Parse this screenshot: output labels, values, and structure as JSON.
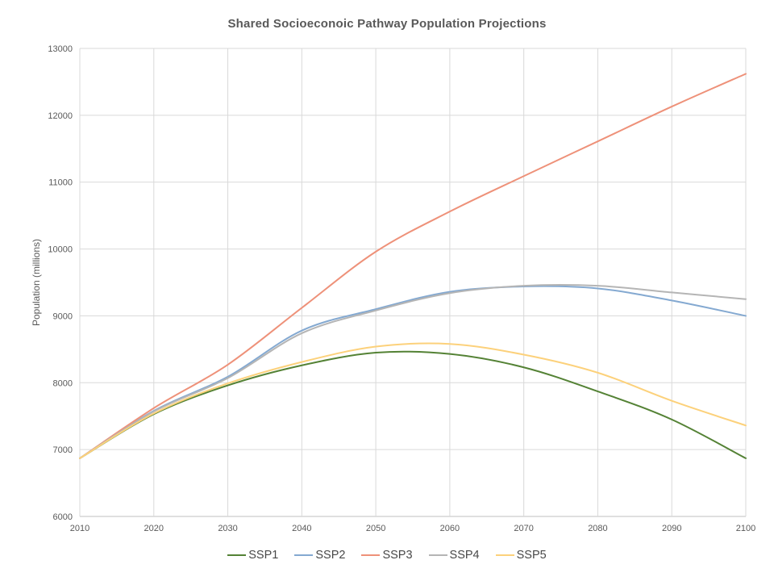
{
  "title": "Shared Socioeconoic Pathway Population Projections",
  "chart_data": {
    "type": "line",
    "x": [
      2010,
      2020,
      2030,
      2040,
      2050,
      2060,
      2070,
      2080,
      2090,
      2100
    ],
    "series": [
      {
        "name": "SSP1",
        "color": "#548235",
        "values": [
          6870,
          7530,
          7960,
          8260,
          8450,
          8430,
          8230,
          7870,
          7450,
          6870
        ]
      },
      {
        "name": "SSP2",
        "color": "#84a9d1",
        "values": [
          6870,
          7580,
          8090,
          8780,
          9100,
          9360,
          9440,
          9410,
          9230,
          9000
        ]
      },
      {
        "name": "SSP3",
        "color": "#ee9179",
        "values": [
          6870,
          7620,
          8270,
          9120,
          9960,
          10560,
          11090,
          11610,
          12130,
          12620
        ]
      },
      {
        "name": "SSP4",
        "color": "#b5b5b5",
        "values": [
          6870,
          7570,
          8070,
          8740,
          9080,
          9340,
          9450,
          9450,
          9350,
          9250
        ]
      },
      {
        "name": "SSP5",
        "color": "#fcd17b",
        "values": [
          6870,
          7540,
          7990,
          8310,
          8540,
          8580,
          8420,
          8150,
          7730,
          7360
        ]
      }
    ],
    "title": "Shared Socioeconoic Pathway Population Projections",
    "xlabel": "",
    "ylabel": "Population (millions)",
    "ylim": [
      6000,
      13000
    ],
    "ytick_step": 1000,
    "yticks": [
      "6000",
      "7000",
      "8000",
      "9000",
      "10000",
      "11000",
      "12000",
      "13000"
    ],
    "xticks": [
      "2010",
      "2020",
      "2030",
      "2040",
      "2050",
      "2060",
      "2070",
      "2080",
      "2090",
      "2100"
    ],
    "grid": true,
    "legend_position": "bottom"
  },
  "colors": {
    "background": "#ffffff",
    "grid": "#d9d9d9",
    "axis": "#bfbfbf",
    "tick_text": "#595959",
    "title_text": "#595959",
    "legend_text": "#484848"
  }
}
